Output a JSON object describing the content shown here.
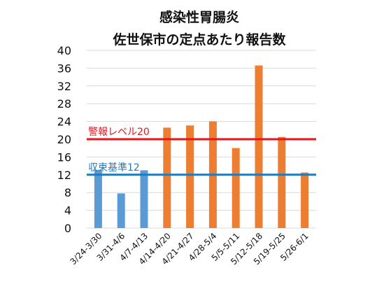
{
  "chart_data": {
    "type": "bar",
    "title": [
      "感染性胃腸炎",
      "佐世保市の定点あたり報告数"
    ],
    "categories": [
      "3/24-3/30",
      "3/31-4/6",
      "4/7-4/13",
      "4/14-4/20",
      "4/21-4/27",
      "4/28-5/4",
      "5/5-5/11",
      "5/12-5/18",
      "5/19-5/25",
      "5/26-6/1"
    ],
    "values": [
      13.1,
      7.8,
      13.0,
      22.6,
      23.1,
      24.0,
      18.0,
      36.6,
      20.5,
      12.5
    ],
    "bar_colors": [
      "#5b9bd5",
      "#5b9bd5",
      "#5b9bd5",
      "#ed7d31",
      "#ed7d31",
      "#ed7d31",
      "#ed7d31",
      "#ed7d31",
      "#ed7d31",
      "#ed7d31"
    ],
    "ylim": [
      0,
      40
    ],
    "yticks": [
      0,
      4,
      8,
      12,
      16,
      20,
      24,
      28,
      32,
      36,
      40
    ],
    "grid": true,
    "reference_lines": [
      {
        "label": "警報レベル20",
        "value": 20,
        "color": "#e8141b"
      },
      {
        "label": "収束基準12",
        "value": 12,
        "color": "#1f7bbf"
      }
    ]
  }
}
